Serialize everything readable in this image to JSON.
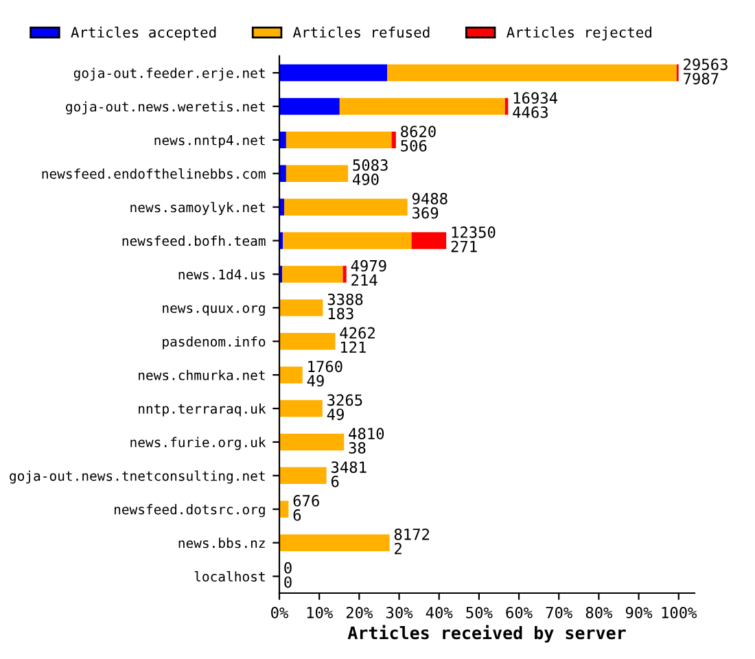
{
  "chart_data": {
    "type": "bar",
    "orientation": "horizontal",
    "stacked": true,
    "xlabel": "Articles received by server",
    "categories": [
      "goja-out.feeder.erje.net",
      "goja-out.news.weretis.net",
      "news.nntp4.net",
      "newsfeed.endofthelinebbs.com",
      "news.samoylyk.net",
      "newsfeed.bofh.team",
      "news.1d4.us",
      "news.quux.org",
      "pasdenom.info",
      "news.chmurka.net",
      "nntp.terraraq.uk",
      "news.furie.org.uk",
      "goja-out.news.tnetconsulting.net",
      "newsfeed.dotsrc.org",
      "news.bbs.nz",
      "localhost"
    ],
    "series": [
      {
        "name": "Articles accepted",
        "color": "#0000ff",
        "values": [
          27.0,
          15.1,
          1.7,
          1.7,
          1.2,
          0.9,
          0.7,
          null,
          null,
          null,
          null,
          null,
          null,
          null,
          null,
          0
        ]
      },
      {
        "name": "Articles refused",
        "color": "#ffb000",
        "values": [
          72.5,
          41.4,
          26.4,
          15.5,
          30.9,
          32.2,
          15.2,
          10.9,
          14.0,
          5.8,
          10.8,
          16.2,
          11.8,
          2.3,
          27.6,
          0
        ]
      },
      {
        "name": "Articles rejected",
        "color": "#ff0000",
        "values": [
          0.5,
          0.8,
          1.1,
          0,
          0,
          8.7,
          0.9,
          0,
          0,
          0,
          0,
          0,
          0,
          0,
          0,
          0
        ]
      }
    ],
    "value_labels": [
      "29563\n7987",
      "16934\n4463",
      "8620\n506",
      "5083\n490",
      "9488\n369",
      "12350\n271",
      "4979\n214",
      "3388\n183",
      "4262\n121",
      "1760\n49",
      "3265\n49",
      "4810\n38",
      "3481\n6",
      "676\n6",
      "8172\n2",
      "0\n0"
    ],
    "xlim": [
      0,
      104
    ],
    "xticks": [
      {
        "value": 0,
        "label": "0%"
      },
      {
        "value": 10,
        "label": "10%"
      },
      {
        "value": 20,
        "label": "20%"
      },
      {
        "value": 30,
        "label": "30%"
      },
      {
        "value": 40,
        "label": "40%"
      },
      {
        "value": 50,
        "label": "50%"
      },
      {
        "value": 60,
        "label": "60%"
      },
      {
        "value": 70,
        "label": "70%"
      },
      {
        "value": 80,
        "label": "80%"
      },
      {
        "value": 90,
        "label": "90%"
      },
      {
        "value": 100,
        "label": "100%"
      }
    ],
    "legend": "top",
    "grid": false
  }
}
